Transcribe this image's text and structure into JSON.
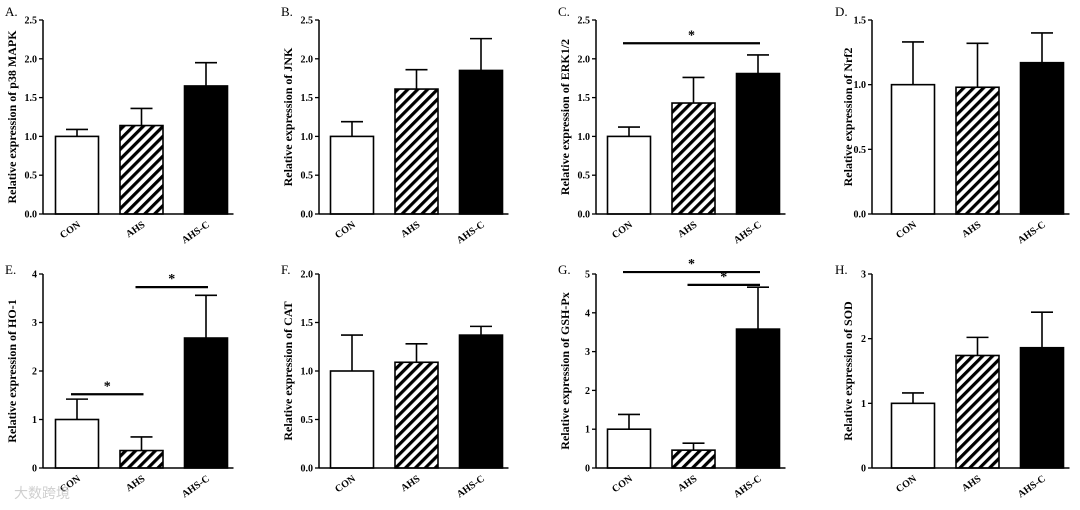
{
  "watermark": "大数跨境",
  "chart_data": [
    {
      "type": "bar",
      "panel": "A.",
      "ylabel": "Relative expression of p38 MAPK",
      "categories": [
        "CON",
        "AHS",
        "AHS-C"
      ],
      "values": [
        1.0,
        1.14,
        1.65
      ],
      "errors": [
        0.09,
        0.22,
        0.3
      ],
      "ylim": [
        0,
        2.5
      ],
      "yticks": [
        "0.0",
        "0.5",
        "1.0",
        "1.5",
        "2.0",
        "2.5"
      ],
      "significance": []
    },
    {
      "type": "bar",
      "panel": "B.",
      "ylabel": "Relative expression of JNK",
      "categories": [
        "CON",
        "AHS",
        "AHS-C"
      ],
      "values": [
        1.0,
        1.61,
        1.85
      ],
      "errors": [
        0.19,
        0.25,
        0.41
      ],
      "ylim": [
        0,
        2.5
      ],
      "yticks": [
        "0.0",
        "0.5",
        "1.0",
        "1.5",
        "2.0",
        "2.5"
      ],
      "significance": []
    },
    {
      "type": "bar",
      "panel": "C.",
      "ylabel": "Relative expression of ERK1/2",
      "categories": [
        "CON",
        "AHS",
        "AHS-C"
      ],
      "values": [
        1.0,
        1.43,
        1.81
      ],
      "errors": [
        0.12,
        0.33,
        0.24
      ],
      "ylim": [
        0,
        2.5
      ],
      "yticks": [
        "0.0",
        "0.5",
        "1.0",
        "1.5",
        "2.0",
        "2.5"
      ],
      "significance": [
        {
          "from": 0,
          "to": 2,
          "label": "*",
          "y": 2.2
        }
      ]
    },
    {
      "type": "bar",
      "panel": "D.",
      "ylabel": "Relative expression of Nrf2",
      "categories": [
        "CON",
        "AHS",
        "AHS-C"
      ],
      "values": [
        1.0,
        0.98,
        1.17
      ],
      "errors": [
        0.33,
        0.34,
        0.23
      ],
      "ylim": [
        0,
        1.5
      ],
      "yticks": [
        "0.0",
        "0.5",
        "1.0",
        "1.5"
      ],
      "significance": []
    },
    {
      "type": "bar",
      "panel": "E.",
      "ylabel": "Relative expression of HO-1",
      "categories": [
        "CON",
        "AHS",
        "AHS-C"
      ],
      "values": [
        1.0,
        0.36,
        2.68
      ],
      "errors": [
        0.42,
        0.28,
        0.88
      ],
      "ylim": [
        0,
        4
      ],
      "yticks": [
        "0",
        "1",
        "2",
        "3",
        "4"
      ],
      "significance": [
        {
          "from": 0,
          "to": 1,
          "label": "*",
          "y": 1.52
        },
        {
          "from": 1,
          "to": 2,
          "label": "*",
          "y": 3.73
        }
      ]
    },
    {
      "type": "bar",
      "panel": "F.",
      "ylabel": "Relative expression of CAT",
      "categories": [
        "CON",
        "AHS",
        "AHS-C"
      ],
      "values": [
        1.0,
        1.09,
        1.37
      ],
      "errors": [
        0.37,
        0.19,
        0.09
      ],
      "ylim": [
        0,
        2.0
      ],
      "yticks": [
        "0.0",
        "0.5",
        "1.0",
        "1.5",
        "2.0"
      ],
      "significance": []
    },
    {
      "type": "bar",
      "panel": "G.",
      "ylabel": "Relative expression of GSH-Px",
      "categories": [
        "CON",
        "AHS",
        "AHS-C"
      ],
      "values": [
        1.0,
        0.46,
        3.58
      ],
      "errors": [
        0.38,
        0.18,
        1.08
      ],
      "ylim": [
        0,
        5
      ],
      "yticks": [
        "0",
        "1",
        "2",
        "3",
        "4",
        "5"
      ],
      "significance": [
        {
          "from": 0,
          "to": 2,
          "label": "*",
          "y": 5.05
        },
        {
          "from": 1,
          "to": 2,
          "label": "*",
          "y": 4.72
        }
      ]
    },
    {
      "type": "bar",
      "panel": "H.",
      "ylabel": "Relative expression of SOD",
      "categories": [
        "CON",
        "AHS",
        "AHS-C"
      ],
      "values": [
        1.0,
        1.74,
        1.86
      ],
      "errors": [
        0.16,
        0.28,
        0.55
      ],
      "ylim": [
        0,
        3
      ],
      "yticks": [
        "0",
        "1",
        "2",
        "3"
      ],
      "significance": []
    }
  ]
}
